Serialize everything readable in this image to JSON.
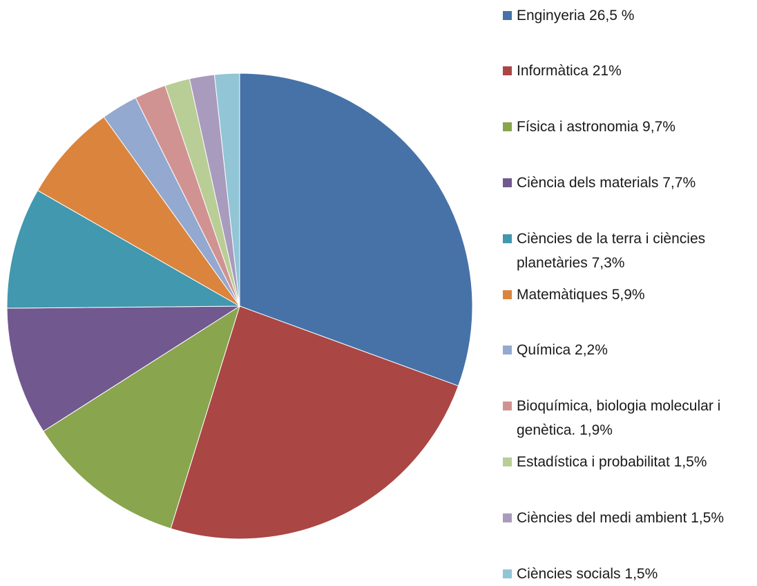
{
  "chart_data": {
    "type": "pie",
    "categories": [
      "Enginyeria 26,5 %",
      "Informàtica 21%",
      "Física i astronomia 9,7%",
      "Ciència dels materials 7,7%",
      "Ciències de la terra i ciències planetàries 7,3%",
      "Matemàtiques 5,9%",
      "Química 2,2%",
      "Bioquímica, biologia molecular i genètica. 1,9%",
      "Estadística i probabilitat 1,5%",
      "Ciències del medi ambient 1,5%",
      "Ciències socials 1,5%"
    ],
    "values": [
      26.5,
      21,
      9.7,
      7.7,
      7.3,
      5.9,
      2.2,
      1.9,
      1.5,
      1.5,
      1.5
    ],
    "colors": [
      "#4672a8",
      "#aa4644",
      "#89a54e",
      "#71588f",
      "#4198af",
      "#db843d",
      "#93a9cf",
      "#d19392",
      "#b9cd96",
      "#a99bbd",
      "#92c5d6"
    ],
    "legend": "right"
  }
}
